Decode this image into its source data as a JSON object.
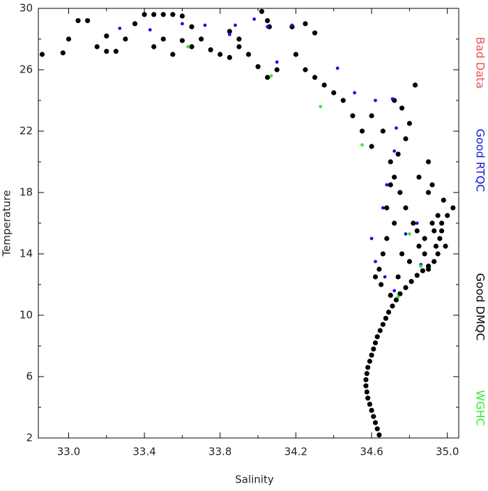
{
  "chart_data": {
    "type": "scatter",
    "xlabel": "Salinity",
    "ylabel": "Temperature",
    "xlim": [
      32.84,
      35.06
    ],
    "xticks": [
      {
        "value": 33.0,
        "label": "33.0"
      },
      {
        "value": 33.4,
        "label": "33.4"
      },
      {
        "value": 33.8,
        "label": "33.8"
      },
      {
        "value": 34.2,
        "label": "34.2"
      },
      {
        "value": 34.6,
        "label": "34.6"
      },
      {
        "value": 35.0,
        "label": "35.0"
      }
    ],
    "xminorticks": [
      33.2,
      33.6,
      34.0,
      34.4,
      34.8
    ],
    "ylim": [
      2,
      30
    ],
    "yticks": [
      2,
      6,
      10,
      14,
      18,
      22,
      26,
      30
    ],
    "yminorticks": [
      4,
      8,
      12,
      16,
      20,
      24,
      28
    ],
    "series": [
      {
        "name": "Bad Data",
        "color": "#f05050",
        "x": [],
        "values": []
      },
      {
        "name": "Good RTQC",
        "color": "#1515e0",
        "x": [
          33.27,
          33.43,
          33.6,
          33.72,
          33.88,
          33.98,
          34.05,
          34.18,
          34.42,
          34.51,
          34.62,
          34.71,
          34.73,
          34.72,
          34.68,
          34.66,
          34.6,
          34.62,
          34.67,
          34.72,
          34.78,
          34.84,
          34.86,
          34.1,
          33.85
        ],
        "values": [
          28.7,
          28.6,
          29.0,
          28.9,
          28.9,
          29.3,
          28.8,
          28.9,
          26.1,
          24.5,
          24.0,
          24.1,
          22.2,
          20.7,
          18.5,
          17,
          15,
          13.5,
          12.5,
          11.6,
          15.3,
          16.0,
          13.3,
          26.5,
          28.3
        ]
      },
      {
        "name": "Good DMQC",
        "color": "#000000",
        "x": [
          34.64,
          34.63,
          34.62,
          34.61,
          34.6,
          34.59,
          34.58,
          34.575,
          34.57,
          34.57,
          34.575,
          34.58,
          34.59,
          34.6,
          34.61,
          34.62,
          34.63,
          34.645,
          34.66,
          34.675,
          34.69,
          34.71,
          34.73,
          34.75,
          34.78,
          34.81,
          34.84,
          34.87,
          34.9,
          34.93,
          34.95,
          34.94,
          34.96,
          34.93,
          34.97,
          35.0,
          35.03,
          34.98,
          34.9,
          34.92,
          34.88,
          34.85,
          34.82,
          34.78,
          34.75,
          34.72,
          34.7,
          34.68,
          34.66,
          34.64,
          34.62,
          34.65,
          34.7,
          34.74,
          34.76,
          34.8,
          34.72,
          34.68,
          34.7,
          34.74,
          34.78,
          34.8,
          34.76,
          34.72,
          34.66,
          34.6,
          34.55,
          34.5,
          34.45,
          34.4,
          34.35,
          34.3,
          34.25,
          34.2,
          34.1,
          34.05,
          33.95,
          33.9,
          33.85,
          33.8,
          33.75,
          33.7,
          33.65,
          33.6,
          33.55,
          33.5,
          33.45,
          33.4,
          33.35,
          33.3,
          33.25,
          33.2,
          33.15,
          33.1,
          33.05,
          33.0,
          32.97,
          32.86,
          33.2,
          33.45,
          33.55,
          33.65,
          33.5,
          33.6,
          34.25,
          34.3,
          34.18,
          34.05,
          34.02,
          34.06,
          33.9,
          33.85,
          34.0,
          34.9,
          34.92,
          34.85,
          34.83,
          34.6,
          34.9,
          34.88,
          34.84,
          34.97,
          34.99,
          34.95
        ],
        "values": [
          2.2,
          2.6,
          3.0,
          3.4,
          3.8,
          4.2,
          4.6,
          5.0,
          5.4,
          5.8,
          6.2,
          6.6,
          7.0,
          7.4,
          7.8,
          8.2,
          8.6,
          9.0,
          9.4,
          9.8,
          10.2,
          10.6,
          11.0,
          11.4,
          11.8,
          12.2,
          12.6,
          12.9,
          13.2,
          13.5,
          14,
          14.5,
          15,
          15.5,
          16,
          16.5,
          17,
          17.5,
          18,
          16,
          15,
          14.5,
          16,
          17,
          18,
          19,
          20,
          15,
          14,
          13,
          12.5,
          12,
          11.3,
          12.5,
          14,
          13.5,
          16,
          17,
          18.5,
          20.5,
          21.5,
          22.5,
          23.5,
          24,
          22,
          21,
          22,
          23,
          24,
          24.5,
          25,
          25.5,
          26,
          27,
          26,
          25.5,
          27,
          28,
          28.5,
          27,
          27.3,
          28,
          28.8,
          29.5,
          29.6,
          29.6,
          29.6,
          29.6,
          29,
          28,
          27.2,
          27.2,
          27.5,
          29.2,
          29.2,
          28,
          27.1,
          27,
          28.2,
          27.5,
          27,
          27.5,
          28,
          27.9,
          29,
          28.4,
          28.8,
          29.2,
          29.8,
          28.8,
          27.5,
          26.8,
          26.2,
          20,
          18.5,
          19,
          25,
          23,
          13,
          14,
          15.5,
          15.5,
          14.5,
          16.5
        ]
      },
      {
        "name": "WGHC",
        "color": "#30ee30",
        "x": [
          33.63,
          34.07,
          34.33,
          34.55,
          34.8,
          34.86,
          34.74
        ],
        "values": [
          27.5,
          25.6,
          23.6,
          21.1,
          15.3,
          13.2,
          11.2
        ]
      }
    ]
  }
}
